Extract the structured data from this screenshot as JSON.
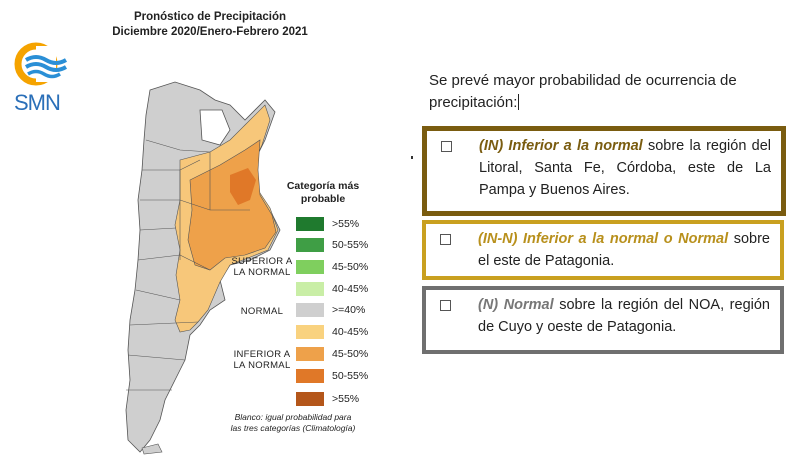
{
  "header": {
    "title_line1": "Pronóstico de Precipitación",
    "title_line2": "Diciembre 2020/Enero-Febrero 2021"
  },
  "logo": {
    "text": "SMN",
    "icon": "smn-logo-icon"
  },
  "map": {
    "icon": "argentina-map",
    "colors": {
      "normal": "#cfcfcf",
      "inferior_40_45": "#f7c77a",
      "inferior_45_50": "#eea14a",
      "inferior_50_55": "#e07828",
      "blank": "#ffffff",
      "border": "#555555"
    }
  },
  "legend": {
    "title_line1": "Categoría más",
    "title_line2": "probable",
    "items": [
      {
        "label": ">55%",
        "color": "#1f7a2e"
      },
      {
        "label": "50-55%",
        "color": "#3f9e45"
      },
      {
        "label": "45-50%",
        "color": "#7fcf5e"
      },
      {
        "label": "40-45%",
        "color": "#c9eea6"
      },
      {
        "label": ">=40%",
        "color": "#cfcfcf"
      },
      {
        "label": "40-45%",
        "color": "#f9d27f"
      },
      {
        "label": "45-50%",
        "color": "#eea14a"
      },
      {
        "label": "50-55%",
        "color": "#e07828"
      },
      {
        "label": ">55%",
        "color": "#b4561a"
      }
    ],
    "group_superior_1": "SUPERIOR A",
    "group_superior_2": "LA NORMAL",
    "group_normal": "NORMAL",
    "group_inferior_1": "INFERIOR A",
    "group_inferior_2": "LA NORMAL",
    "note_line1": "Blanco: igual probabilidad para",
    "note_line2": "las tres categorías (Climatología)"
  },
  "forecast": {
    "intro": "Se prevé mayor probabilidad de ocurrencia de precipitación:",
    "items": [
      {
        "emphasis": "(IN) Inferior a la normal",
        "text": " sobre la región del Litoral, Santa Fe, Córdoba, este de La Pampa y Buenos Aires.",
        "border_color": "#7a5c10",
        "emphasis_color": "#7a5c10"
      },
      {
        "emphasis": "(IN-N) Inferior a la normal o Normal",
        "text": " sobre el este de Patagonia.",
        "border_color": "#c9a020",
        "emphasis_color": "#b8901c"
      },
      {
        "emphasis": "(N) Normal",
        "text": " sobre la región del NOA, región de Cuyo y oeste de Patagonia.",
        "border_color": "#6f6f6f",
        "emphasis_color": "#777777"
      }
    ]
  }
}
